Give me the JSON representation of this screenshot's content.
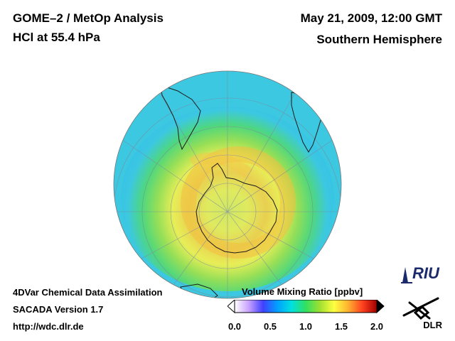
{
  "header": {
    "title_line1": "GOME–2 / MetOp Analysis",
    "title_line2": "HCl at 55.4 hPa",
    "date": "May 21, 2009, 12:00 GMT",
    "hemisphere": "Southern Hemisphere"
  },
  "footer": {
    "line1": "4DVar Chemical Data Assimilation",
    "line2": "SACADA Version 1.7",
    "line3": "http://wdc.dlr.de"
  },
  "colorbar": {
    "label": "Volume Mixing Ratio [ppbv]",
    "ticks": [
      "0.0",
      "0.5",
      "1.0",
      "1.5",
      "2.0"
    ],
    "colors": [
      "#ffffff",
      "#c8a0ff",
      "#4040ff",
      "#00a0ff",
      "#00e0e0",
      "#30e060",
      "#a0e030",
      "#ffff40",
      "#ffb030",
      "#ff4020",
      "#a00000"
    ]
  },
  "logos": {
    "riu": "RIU",
    "dlr": "DLR"
  },
  "map_colors": {
    "outer": "#3cc8e0",
    "ring_green": "#60d860",
    "ring_yellow": "#f0f050",
    "ring_orange": "#f4c040",
    "center": "#d8e860"
  }
}
